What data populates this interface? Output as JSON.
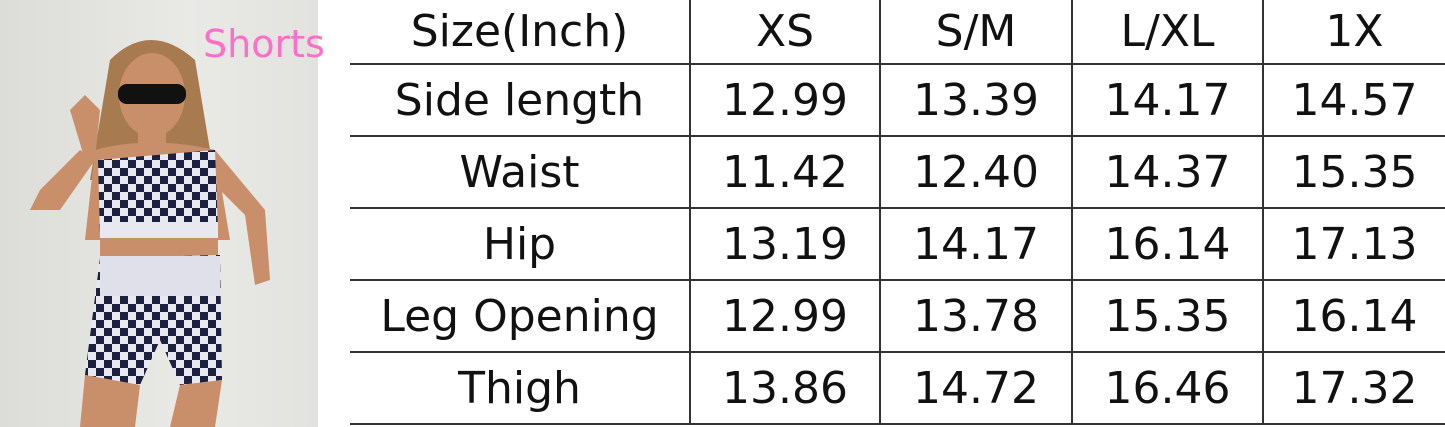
{
  "title": "Shorts",
  "table": {
    "header": [
      "Size(Inch)",
      "XS",
      "S/M",
      "L/XL",
      "1X"
    ],
    "rows": [
      [
        "Side length",
        "12.99",
        "13.39",
        "14.17",
        "14.57"
      ],
      [
        "Waist",
        "11.42",
        "12.40",
        "14.37",
        "15.35"
      ],
      [
        "Hip",
        "13.19",
        "14.17",
        "16.14",
        "17.13"
      ],
      [
        "Leg Opening",
        "12.99",
        "13.78",
        "15.35",
        "16.14"
      ],
      [
        "Thigh",
        "13.86",
        "14.72",
        "16.46",
        "17.32"
      ]
    ]
  },
  "colors": {
    "title": "#ff6ec7",
    "grid": "#333333"
  }
}
